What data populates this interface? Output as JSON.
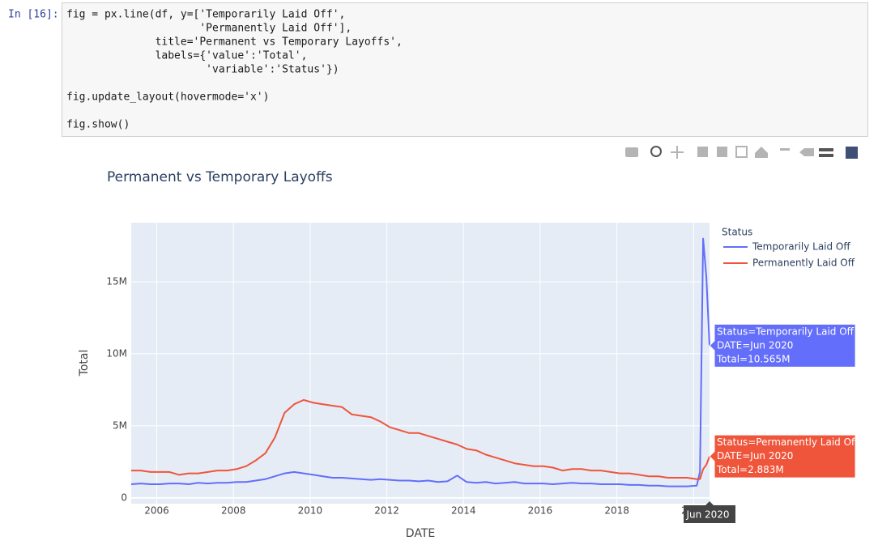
{
  "cell": {
    "prompt": "In [16]:",
    "code_blocks": [
      [
        "fig = px.line(df, y=['Temporarily Laid Off',",
        "                     'Permanently Laid Off'],",
        "              title='Permanent vs Temporary Layoffs',",
        "              labels={'value':'Total',",
        "                      'variable':'Status'})"
      ],
      [
        "fig.update_layout(hovermode='x')"
      ],
      [
        "fig.show()"
      ]
    ]
  },
  "chart_data": {
    "type": "line",
    "title": "Permanent vs Temporary Layoffs",
    "x_label": "DATE",
    "y_label": "Total",
    "legend_title": "Status",
    "legend_position": "right",
    "grid": true,
    "x": [
      "2005-05",
      "2005-08",
      "2005-11",
      "2006-02",
      "2006-05",
      "2006-08",
      "2006-11",
      "2007-02",
      "2007-05",
      "2007-08",
      "2007-11",
      "2008-02",
      "2008-05",
      "2008-08",
      "2008-11",
      "2009-02",
      "2009-05",
      "2009-08",
      "2009-11",
      "2010-02",
      "2010-05",
      "2010-08",
      "2010-11",
      "2011-02",
      "2011-05",
      "2011-08",
      "2011-11",
      "2012-02",
      "2012-05",
      "2012-08",
      "2012-11",
      "2013-02",
      "2013-05",
      "2013-08",
      "2013-11",
      "2014-02",
      "2014-05",
      "2014-08",
      "2014-11",
      "2015-02",
      "2015-05",
      "2015-08",
      "2015-11",
      "2016-02",
      "2016-05",
      "2016-08",
      "2016-11",
      "2017-02",
      "2017-05",
      "2017-08",
      "2017-11",
      "2018-02",
      "2018-05",
      "2018-08",
      "2018-11",
      "2019-02",
      "2019-05",
      "2019-08",
      "2019-11",
      "2020-02",
      "2020-03",
      "2020-04",
      "2020-05",
      "2020-06"
    ],
    "xlim": [
      "2005-05",
      "2020-06"
    ],
    "xticks": [
      2006,
      2008,
      2010,
      2012,
      2014,
      2016,
      2018,
      2020
    ],
    "ylim": [
      -400000,
      19100000
    ],
    "yticks": [
      0,
      {
        "value": 5000000,
        "label": "5M"
      },
      {
        "value": 10000000,
        "label": "10M"
      },
      {
        "value": 15000000,
        "label": "15M"
      }
    ],
    "series": [
      {
        "name": "Temporarily Laid Off",
        "color": "#636efa",
        "values": [
          950000,
          1000000,
          950000,
          950000,
          1000000,
          1000000,
          950000,
          1050000,
          1000000,
          1050000,
          1050000,
          1100000,
          1100000,
          1200000,
          1300000,
          1500000,
          1700000,
          1800000,
          1700000,
          1600000,
          1500000,
          1400000,
          1400000,
          1350000,
          1300000,
          1250000,
          1300000,
          1250000,
          1200000,
          1200000,
          1150000,
          1200000,
          1100000,
          1150000,
          1550000,
          1100000,
          1050000,
          1100000,
          1000000,
          1050000,
          1100000,
          1000000,
          1000000,
          1000000,
          950000,
          1000000,
          1050000,
          1000000,
          1000000,
          950000,
          950000,
          950000,
          900000,
          900000,
          850000,
          850000,
          800000,
          800000,
          800000,
          850000,
          1800000,
          18000000,
          15300000,
          10565000
        ]
      },
      {
        "name": "Permanently Laid Off",
        "color": "#ef553b",
        "values": [
          1900000,
          1900000,
          1800000,
          1800000,
          1800000,
          1600000,
          1700000,
          1700000,
          1800000,
          1900000,
          1900000,
          2000000,
          2200000,
          2600000,
          3100000,
          4200000,
          5900000,
          6500000,
          6800000,
          6600000,
          6500000,
          6400000,
          6300000,
          5800000,
          5700000,
          5600000,
          5300000,
          4900000,
          4700000,
          4500000,
          4500000,
          4300000,
          4100000,
          3900000,
          3700000,
          3400000,
          3300000,
          3000000,
          2800000,
          2600000,
          2400000,
          2300000,
          2200000,
          2200000,
          2100000,
          1900000,
          2000000,
          2000000,
          1900000,
          1900000,
          1800000,
          1700000,
          1700000,
          1600000,
          1500000,
          1500000,
          1400000,
          1400000,
          1400000,
          1300000,
          1300000,
          2000000,
          2300000,
          2883000
        ]
      }
    ],
    "hover": {
      "x_label": "Jun 2020",
      "boxes": [
        [
          "Status=Temporarily Laid Off",
          "DATE=Jun 2020",
          "Total=10.565M"
        ],
        [
          "Status=Permanently Laid Off",
          "DATE=Jun 2020",
          "Total=2.883M"
        ]
      ]
    }
  }
}
